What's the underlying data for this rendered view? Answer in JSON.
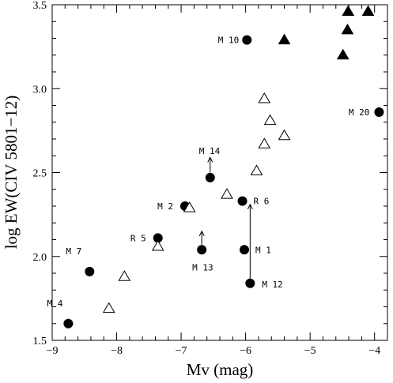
{
  "chart_data": {
    "type": "scatter",
    "xlabel": "Mv (mag)",
    "ylabel": "log EW(CIV 5801−12)",
    "xlim": [
      -9,
      -3.8
    ],
    "ylim": [
      1.5,
      3.5
    ],
    "x_ticks": [
      "−9",
      "−8",
      "−7",
      "−6",
      "−5",
      "−4"
    ],
    "y_ticks": [
      "1.5",
      "2.0",
      "2.5",
      "3.0",
      "3.5"
    ],
    "grid": false,
    "series": [
      {
        "marker": "filled-circle",
        "points": [
          {
            "x": -8.75,
            "y": 1.6,
            "label": "M 4"
          },
          {
            "x": -8.42,
            "y": 1.91,
            "label": "M 7"
          },
          {
            "x": -7.36,
            "y": 2.11,
            "label": "R 5"
          },
          {
            "x": -6.94,
            "y": 2.3,
            "label": "M 2"
          },
          {
            "x": -6.68,
            "y": 2.04,
            "label": "M 13"
          },
          {
            "x": -6.55,
            "y": 2.47,
            "label": "M 14"
          },
          {
            "x": -6.05,
            "y": 2.33,
            "label": "R 6"
          },
          {
            "x": -6.02,
            "y": 2.04,
            "label": "M 1"
          },
          {
            "x": -5.93,
            "y": 1.84,
            "label": "M 12"
          },
          {
            "x": -5.98,
            "y": 3.29,
            "label": "M 10"
          },
          {
            "x": -3.93,
            "y": 2.86,
            "label": "M 20"
          }
        ]
      },
      {
        "marker": "open-triangle",
        "points": [
          {
            "x": -8.12,
            "y": 1.69
          },
          {
            "x": -7.88,
            "y": 1.88
          },
          {
            "x": -7.36,
            "y": 2.06
          },
          {
            "x": -6.87,
            "y": 2.29
          },
          {
            "x": -6.29,
            "y": 2.37
          },
          {
            "x": -5.83,
            "y": 2.51
          },
          {
            "x": -5.71,
            "y": 2.67
          },
          {
            "x": -5.71,
            "y": 2.94
          },
          {
            "x": -5.62,
            "y": 2.81
          },
          {
            "x": -5.4,
            "y": 2.72
          }
        ]
      },
      {
        "marker": "filled-triangle",
        "points": [
          {
            "x": -5.4,
            "y": 3.29
          },
          {
            "x": -4.49,
            "y": 3.2
          },
          {
            "x": -4.42,
            "y": 3.35
          },
          {
            "x": -4.41,
            "y": 3.46
          },
          {
            "x": -4.1,
            "y": 3.46
          }
        ]
      }
    ],
    "arrows": [
      {
        "x": -6.55,
        "y_from": 2.5,
        "y_to": 2.59,
        "direction": "up"
      },
      {
        "x": -6.68,
        "y_from": 2.07,
        "y_to": 2.15,
        "direction": "up"
      },
      {
        "x": -5.93,
        "y_from": 1.86,
        "y_to": 2.31,
        "direction": "up"
      }
    ]
  }
}
